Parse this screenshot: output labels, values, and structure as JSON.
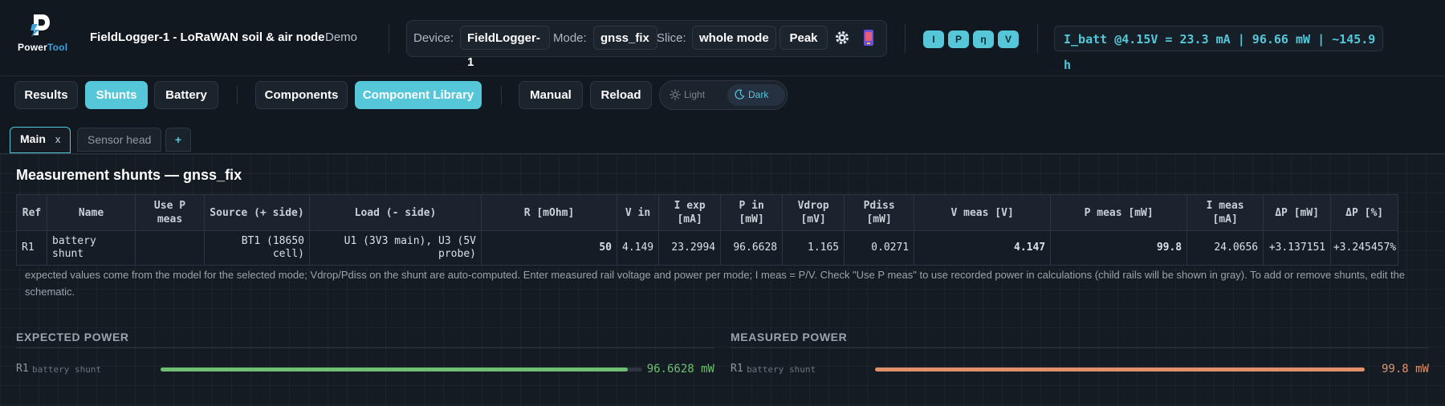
{
  "logo": {
    "text_a": "Power",
    "text_b": "Tool"
  },
  "header": {
    "title": "FieldLogger-1 - LoRaWAN soil & air node",
    "badge": "Demo",
    "device_label": "Device:",
    "device_value": "FieldLogger-1",
    "mode_label": "Mode:",
    "mode_value": "gnss_fix",
    "slice_label": "Slice:",
    "slice_value": "whole mode",
    "peak_label": "Peak",
    "quantity_badges": [
      "I",
      "P",
      "η",
      "V"
    ],
    "readout": "I_batt @4.15V = 23.3 mA | 96.66 mW | ~145.9 h"
  },
  "toolbar": {
    "results": "Results",
    "shunts": "Shunts",
    "battery": "Battery",
    "components": "Components",
    "component_library": "Component Library",
    "manual": "Manual",
    "reload": "Reload",
    "theme_light": "Light",
    "theme_dark": "Dark",
    "active_theme": "dark"
  },
  "tabs": [
    {
      "label": "Main",
      "close": "x",
      "active": true
    },
    {
      "label": "Sensor head",
      "active": false
    },
    {
      "label": "+",
      "active": false
    }
  ],
  "section_title": "Measurement shunts — gnss_fix",
  "table": {
    "headers": [
      "Ref",
      "Name",
      "Use P meas",
      "Source (+ side)",
      "Load (- side)",
      "R [mOhm]",
      "V in",
      "I exp [mA]",
      "P in [mW]",
      "Vdrop [mV]",
      "Pdiss [mW]",
      "V meas [V]",
      "P meas [mW]",
      "I meas [mA]",
      "ΔP [mW]",
      "ΔP [%]"
    ],
    "rows": [
      {
        "ref": "R1",
        "name": "battery shunt",
        "use_p_meas": "",
        "source": "BT1 (18650 cell)",
        "load": "U1 (3V3 main), U3 (5V probe)",
        "r_mohm": "50",
        "v_in": "4.149",
        "i_exp": "23.2994",
        "p_in": "96.6628",
        "vdrop": "1.165",
        "pdiss": "0.0271",
        "v_meas": "4.147",
        "p_meas": "99.8",
        "i_meas": "24.0656",
        "dp_mw": "+3.137151",
        "dp_pct": "+3.245457%"
      }
    ]
  },
  "note": "expected values come from the model for the selected mode; Vdrop/Pdiss on the shunt are auto-computed. Enter measured rail voltage and power per mode; I meas = P/V. Check \"Use P meas\" to use recorded power in calculations (child rails will be shown in gray). To add or remove shunts, edit the schematic.",
  "expected_power": {
    "heading": "EXPECTED POWER",
    "ref": "R1",
    "name": "battery shunt",
    "value": "96.6628 mW",
    "fraction": 0.97,
    "color": "#6fbf73"
  },
  "measured_power": {
    "heading": "MEASURED POWER",
    "ref": "R1",
    "name": "battery shunt",
    "value": "99.8 mW",
    "fraction": 1.0,
    "color": "#e0916a"
  },
  "colors": {
    "accent": "#56c7d9",
    "background": "#121820"
  }
}
